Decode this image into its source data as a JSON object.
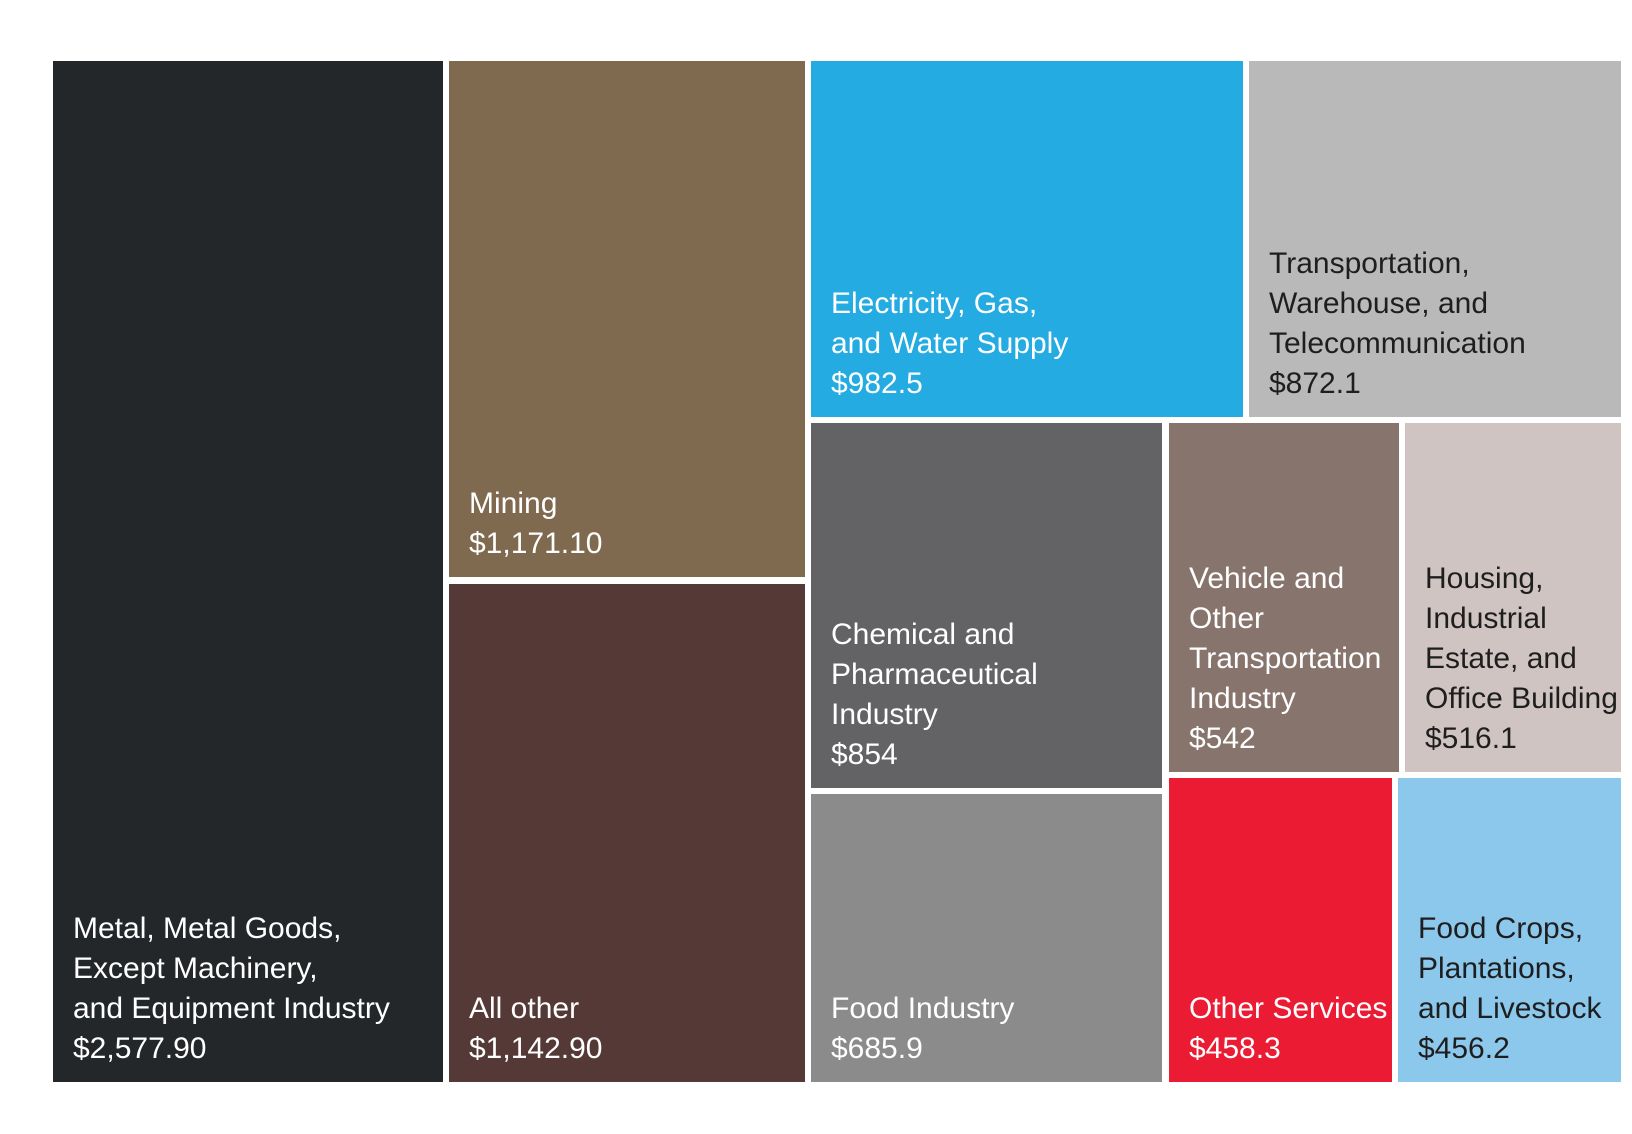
{
  "chart_data": {
    "type": "treemap",
    "title": "",
    "tiles": [
      {
        "lines": [
          "Metal, Metal Goods,",
          "Except Machinery,",
          "and Equipment Industry"
        ],
        "value_label": "$2,577.90",
        "value": 2577.9,
        "color": "#24272a",
        "text_color": "#ffffff"
      },
      {
        "lines": [
          "Mining"
        ],
        "value_label": "$1,171.10",
        "value": 1171.1,
        "color": "#7f6a4f",
        "text_color": "#ffffff"
      },
      {
        "lines": [
          "All other"
        ],
        "value_label": "$1,142.90",
        "value": 1142.9,
        "color": "#543936",
        "text_color": "#ffffff"
      },
      {
        "lines": [
          "Electricity, Gas,",
          "and Water Supply"
        ],
        "value_label": "$982.5",
        "value": 982.5,
        "color": "#23abe2",
        "text_color": "#ffffff"
      },
      {
        "lines": [
          "Transportation,",
          "Warehouse, and",
          "Telecommunication"
        ],
        "value_label": "$872.1",
        "value": 872.1,
        "color": "#b9b9b9",
        "text_color": "#1e1e1e"
      },
      {
        "lines": [
          "Chemical and",
          "Pharmaceutical",
          "Industry"
        ],
        "value_label": "$854",
        "value": 854,
        "color": "#636365",
        "text_color": "#ffffff"
      },
      {
        "lines": [
          "Vehicle and",
          "Other",
          "Transportation",
          "Industry"
        ],
        "value_label": "$542",
        "value": 542,
        "color": "#87746c",
        "text_color": "#ffffff"
      },
      {
        "lines": [
          "Housing,",
          "Industrial",
          "Estate, and",
          "Office Building"
        ],
        "value_label": "$516.1",
        "value": 516.1,
        "color": "#cfc4c1",
        "text_color": "#1e1e1e"
      },
      {
        "lines": [
          "Food Industry"
        ],
        "value_label": "$685.9",
        "value": 685.9,
        "color": "#8c8b8c",
        "text_color": "#ffffff"
      },
      {
        "lines": [
          "Other Services"
        ],
        "value_label": "$458.3",
        "value": 458.3,
        "color": "#ec1b34",
        "text_color": "#ffffff"
      },
      {
        "lines": [
          "Food Crops,",
          "Plantations,",
          "and Livestock"
        ],
        "value_label": "$456.2",
        "value": 456.2,
        "color": "#8cc7ec",
        "text_color": "#1e1e1e"
      }
    ]
  }
}
